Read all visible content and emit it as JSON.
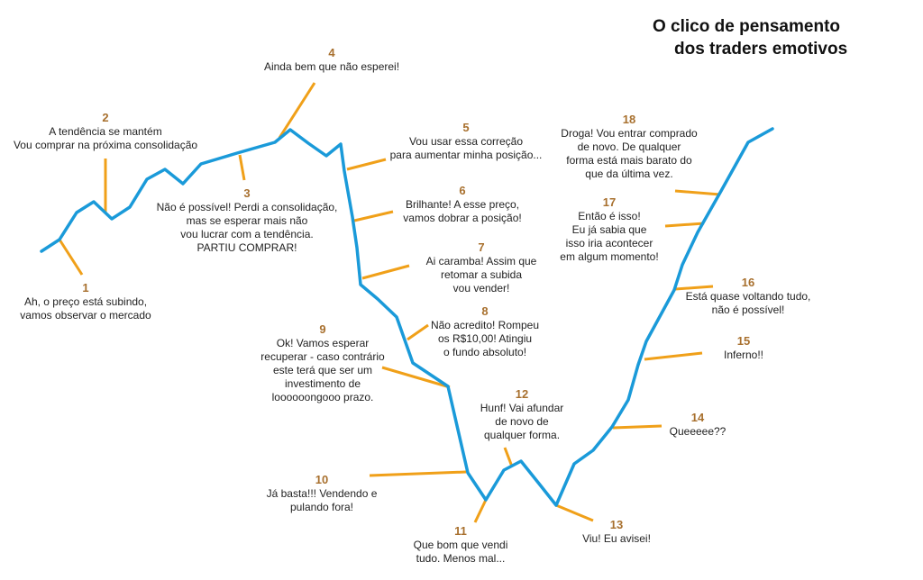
{
  "title": {
    "line1": "O clico de pensamento",
    "line2": "dos traders emotivos"
  },
  "colors": {
    "curve": "#1a9ad9",
    "pointer": "#f0a019",
    "number": "#a8702e",
    "text": "#222222"
  },
  "steps": [
    {
      "num": "1",
      "text": "Ah, o preço está subindo,\nvamos observar o mercado"
    },
    {
      "num": "2",
      "text": "A tendência se mantém\nVou comprar na próxima consolidação"
    },
    {
      "num": "3",
      "text": "Não é possível! Perdi a consolidação,\nmas se esperar mais não\nvou lucrar com a tendência.\nPARTIU COMPRAR!"
    },
    {
      "num": "4",
      "text": "Ainda bem que não esperei!"
    },
    {
      "num": "5",
      "text": "Vou usar essa correção\npara aumentar minha posição..."
    },
    {
      "num": "6",
      "text": "Brilhante! A esse preço,\nvamos dobrar a posição!"
    },
    {
      "num": "7",
      "text": "Ai caramba! Assim que\nretomar a subida\nvou vender!"
    },
    {
      "num": "8",
      "text": "Não acredito! Rompeu\nos R$10,00! Atingiu\no fundo absoluto!"
    },
    {
      "num": "9",
      "text": "Ok! Vamos esperar\nrecuperar - caso contrário\neste terá que ser um\ninvestimento de\nloooooongooo prazo."
    },
    {
      "num": "10",
      "text": "Já basta!!! Vendendo e\npulando fora!"
    },
    {
      "num": "11",
      "text": "Que bom que vendi\ntudo. Menos mal..."
    },
    {
      "num": "12",
      "text": "Hunf! Vai afundar\nde novo de\nqualquer forma."
    },
    {
      "num": "13",
      "text": "Viu! Eu avisei!"
    },
    {
      "num": "14",
      "text": "Queeeee??"
    },
    {
      "num": "15",
      "text": "Inferno!!"
    },
    {
      "num": "16",
      "text": "Está quase voltando tudo,\nnão é possível!"
    },
    {
      "num": "17",
      "text": "Então é isso!\nEu já sabia que\nisso iria acontecer\nem algum momento!"
    },
    {
      "num": "18",
      "text": "Droga! Vou entrar comprado\nde novo. De qualquer\nforma está mais barato do\nque da última vez."
    }
  ]
}
